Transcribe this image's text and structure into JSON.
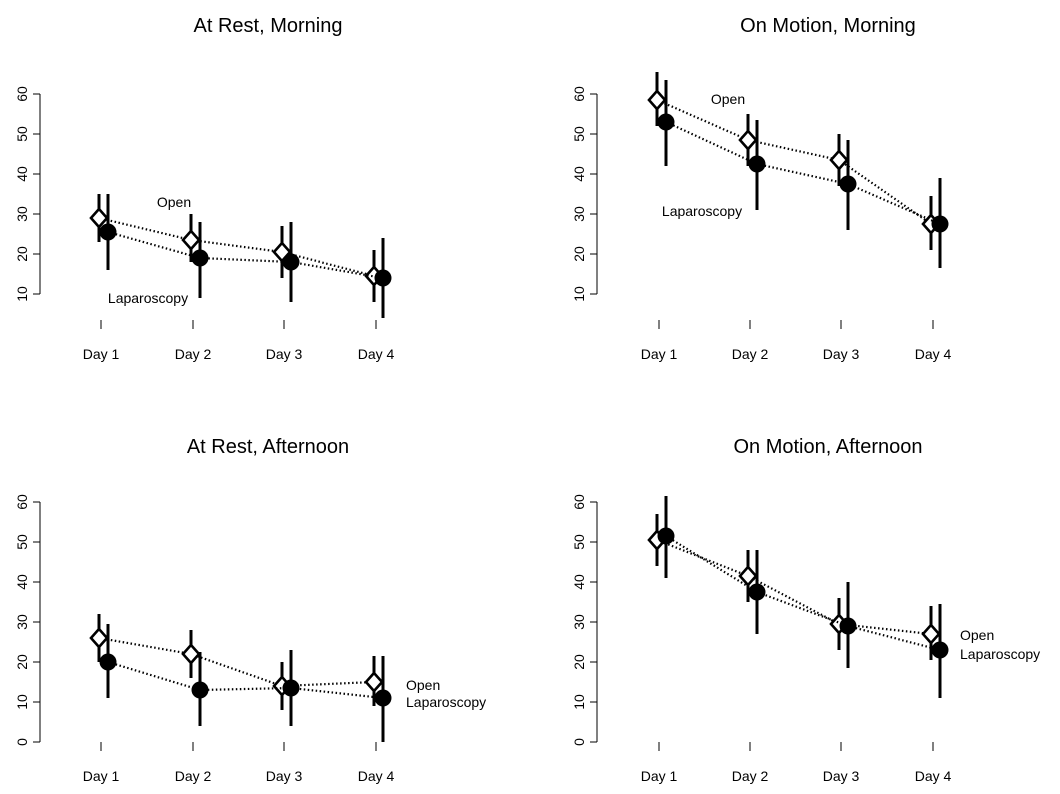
{
  "chart_data": [
    {
      "type": "line",
      "title": "At Rest, Morning",
      "categories": [
        "Day 1",
        "Day 2",
        "Day 3",
        "Day 4"
      ],
      "ylim": [
        0,
        60
      ],
      "yticks": [
        10,
        20,
        30,
        40,
        50,
        60
      ],
      "grid": false,
      "series": [
        {
          "name": "Open",
          "marker": "diamond-open",
          "values": [
            29,
            23.5,
            20.5,
            14.5
          ],
          "lower": [
            23,
            18,
            14,
            8
          ],
          "upper": [
            35,
            30,
            27,
            21
          ]
        },
        {
          "name": "Laparoscopy",
          "marker": "circle-filled",
          "values": [
            25.5,
            19,
            18,
            14
          ],
          "lower": [
            16,
            9,
            8,
            4
          ],
          "upper": [
            35,
            28,
            28,
            24
          ]
        }
      ],
      "annotations": [
        "Open",
        "Laparoscopy"
      ]
    },
    {
      "type": "line",
      "title": "On Motion, Morning",
      "categories": [
        "Day 1",
        "Day 2",
        "Day 3",
        "Day 4"
      ],
      "ylim": [
        10,
        60
      ],
      "yticks": [
        10,
        20,
        30,
        40,
        50,
        60
      ],
      "grid": false,
      "series": [
        {
          "name": "Open",
          "marker": "diamond-open",
          "values": [
            58.5,
            48.5,
            43.5,
            27.5
          ],
          "lower": [
            52,
            42,
            37,
            21
          ],
          "upper": [
            65.5,
            55,
            50,
            34.5
          ]
        },
        {
          "name": "Laparoscopy",
          "marker": "circle-filled",
          "values": [
            53,
            42.5,
            37.5,
            27.5
          ],
          "lower": [
            42,
            31,
            26,
            16.5
          ],
          "upper": [
            63.5,
            53.5,
            48.5,
            39
          ]
        }
      ],
      "annotations": [
        "Open",
        "Laparoscopy"
      ]
    },
    {
      "type": "line",
      "title": "At Rest, Afternoon",
      "categories": [
        "Day 1",
        "Day 2",
        "Day 3",
        "Day 4"
      ],
      "ylim": [
        0,
        60
      ],
      "yticks": [
        0,
        10,
        20,
        30,
        40,
        50,
        60
      ],
      "grid": false,
      "series": [
        {
          "name": "Open",
          "marker": "diamond-open",
          "values": [
            26,
            22,
            14,
            15
          ],
          "lower": [
            20,
            16,
            8,
            9
          ],
          "upper": [
            32,
            28,
            20,
            21.5
          ]
        },
        {
          "name": "Laparoscopy",
          "marker": "circle-filled",
          "values": [
            20,
            13,
            13.5,
            11
          ],
          "lower": [
            11,
            4,
            4,
            0
          ],
          "upper": [
            29.5,
            22.5,
            23,
            21.5
          ]
        }
      ],
      "annotations": [
        "Open",
        "Laparoscopy"
      ]
    },
    {
      "type": "line",
      "title": "On Motion, Afternoon",
      "categories": [
        "Day 1",
        "Day 2",
        "Day 3",
        "Day 4"
      ],
      "ylim": [
        0,
        60
      ],
      "yticks": [
        0,
        10,
        20,
        30,
        40,
        50,
        60
      ],
      "grid": false,
      "series": [
        {
          "name": "Open",
          "marker": "diamond-open",
          "values": [
            50.5,
            41.5,
            29.5,
            27
          ],
          "lower": [
            44,
            35,
            23,
            20.5
          ],
          "upper": [
            57,
            48,
            36,
            34
          ]
        },
        {
          "name": "Laparoscopy",
          "marker": "circle-filled",
          "values": [
            51.5,
            37.5,
            29,
            23
          ],
          "lower": [
            41,
            27,
            18.5,
            11
          ],
          "upper": [
            61.5,
            48,
            40,
            34.5
          ]
        }
      ],
      "annotations": [
        "Open",
        "Laparoscopy"
      ]
    }
  ]
}
